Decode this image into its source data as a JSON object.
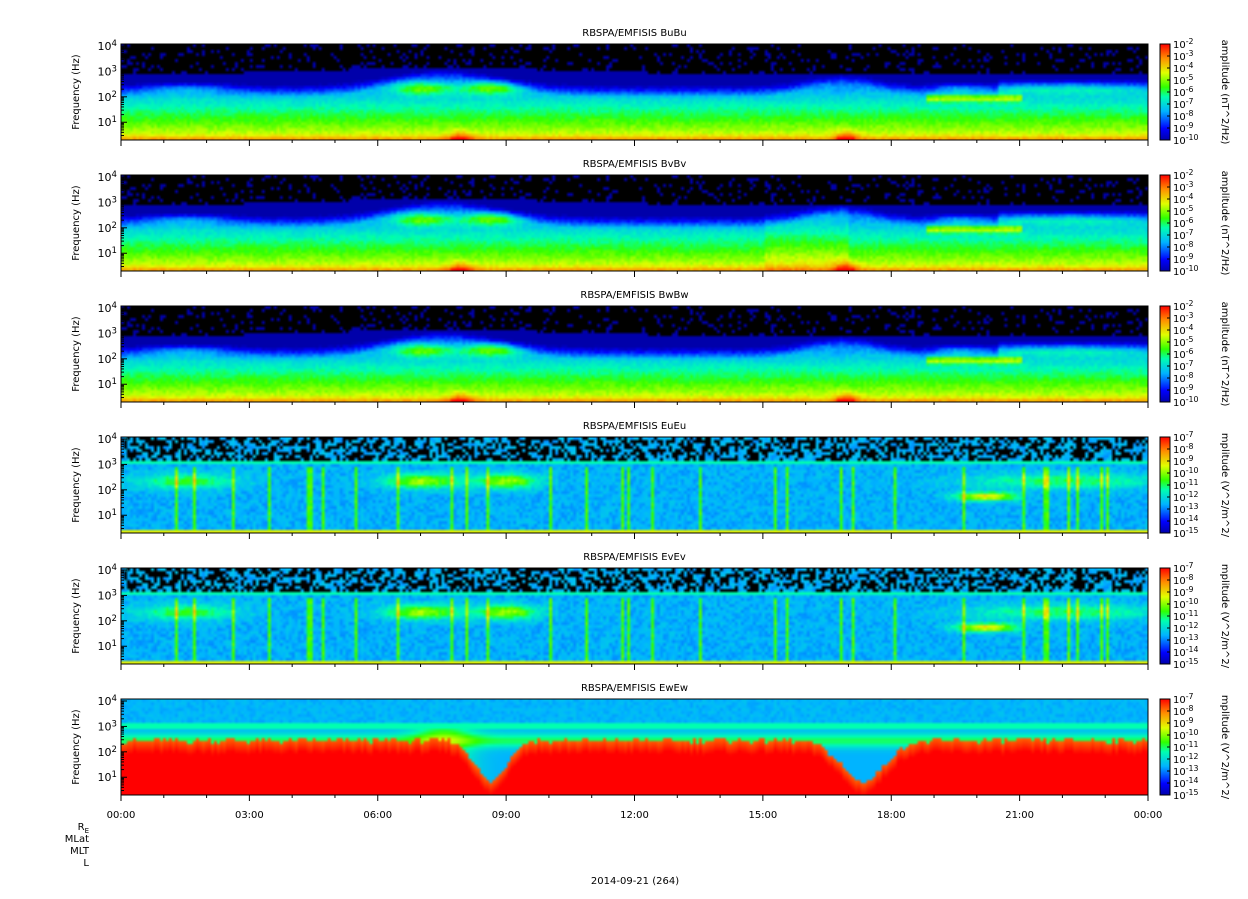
{
  "figure": {
    "x_axis_label": "2014-09-21 (264)",
    "x_tick_labels": [
      "00:00",
      "03:00",
      "06:00",
      "09:00",
      "12:00",
      "15:00",
      "18:00",
      "21:00",
      "00:00"
    ],
    "ephemeris_labels": [
      "R_E",
      "MLat",
      "MLT",
      "L"
    ],
    "colors": {
      "background": "#ffffff",
      "frame": "#000000",
      "fill_value": "#000000"
    }
  },
  "chart_data": [
    {
      "type": "heatmap",
      "title": "RBSPA/EMFISIS  BuBu",
      "ylabel": "Frequency (Hz)",
      "y_scale": "log",
      "y_tick_labels": [
        "10^4",
        "10^3",
        "10^2",
        "10^1"
      ],
      "ylim": [
        2,
        12000
      ],
      "x_range": [
        "00:00",
        "24:00"
      ],
      "colorbar": {
        "label": "amplitude (nT^2/Hz)",
        "scale": "log",
        "exp_min": -10,
        "exp_max": -2,
        "tick_labels": [
          "10^-2",
          "10^-3",
          "10^-4",
          "10^-5",
          "10^-6",
          "10^-7",
          "10^-8",
          "10^-9",
          "10^-10"
        ]
      }
    },
    {
      "type": "heatmap",
      "title": "RBSPA/EMFISIS  BvBv",
      "ylabel": "Frequency (Hz)",
      "y_scale": "log",
      "y_tick_labels": [
        "10^4",
        "10^3",
        "10^2",
        "10^1"
      ],
      "ylim": [
        2,
        12000
      ],
      "x_range": [
        "00:00",
        "24:00"
      ],
      "colorbar": {
        "label": "amplitude (nT^2/Hz)",
        "scale": "log",
        "exp_min": -10,
        "exp_max": -2,
        "tick_labels": [
          "10^-2",
          "10^-3",
          "10^-4",
          "10^-5",
          "10^-6",
          "10^-7",
          "10^-8",
          "10^-9",
          "10^-10"
        ]
      }
    },
    {
      "type": "heatmap",
      "title": "RBSPA/EMFISIS  BwBw",
      "ylabel": "Frequency (Hz)",
      "y_scale": "log",
      "y_tick_labels": [
        "10^4",
        "10^3",
        "10^2",
        "10^1"
      ],
      "ylim": [
        2,
        12000
      ],
      "x_range": [
        "00:00",
        "24:00"
      ],
      "colorbar": {
        "label": "amplitude (nT^2/Hz)",
        "scale": "log",
        "exp_min": -10,
        "exp_max": -2,
        "tick_labels": [
          "10^-2",
          "10^-3",
          "10^-4",
          "10^-5",
          "10^-6",
          "10^-7",
          "10^-8",
          "10^-9",
          "10^-10"
        ]
      }
    },
    {
      "type": "heatmap",
      "title": "RBSPA/EMFISIS  EuEu",
      "ylabel": "Frequency (Hz)",
      "y_scale": "log",
      "y_tick_labels": [
        "10^4",
        "10^3",
        "10^2",
        "10^1"
      ],
      "ylim": [
        2,
        12000
      ],
      "x_range": [
        "00:00",
        "24:00"
      ],
      "colorbar": {
        "label": "mplitude (V^2/m^2/",
        "scale": "log",
        "exp_min": -15,
        "exp_max": -7,
        "tick_labels": [
          "10^-7",
          "10^-8",
          "10^-9",
          "10^-10",
          "10^-11",
          "10^-12",
          "10^-13",
          "10^-14",
          "10^-15"
        ]
      }
    },
    {
      "type": "heatmap",
      "title": "RBSPA/EMFISIS  EvEv",
      "ylabel": "Frequency (Hz)",
      "y_scale": "log",
      "y_tick_labels": [
        "10^4",
        "10^3",
        "10^2",
        "10^1"
      ],
      "ylim": [
        2,
        12000
      ],
      "x_range": [
        "00:00",
        "24:00"
      ],
      "colorbar": {
        "label": "mplitude (V^2/m^2/",
        "scale": "log",
        "exp_min": -15,
        "exp_max": -7,
        "tick_labels": [
          "10^-7",
          "10^-8",
          "10^-9",
          "10^-10",
          "10^-11",
          "10^-12",
          "10^-13",
          "10^-14",
          "10^-15"
        ]
      }
    },
    {
      "type": "heatmap",
      "title": "RBSPA/EMFISIS  EwEw",
      "ylabel": "Frequency (Hz)",
      "y_scale": "log",
      "y_tick_labels": [
        "10^4",
        "10^3",
        "10^2",
        "10^1"
      ],
      "ylim": [
        2,
        12000
      ],
      "x_range": [
        "00:00",
        "24:00"
      ],
      "colorbar": {
        "label": "mplitude (V^2/m^2/",
        "scale": "log",
        "exp_min": -15,
        "exp_max": -7,
        "tick_labels": [
          "10^-7",
          "10^-8",
          "10^-9",
          "10^-10",
          "10^-11",
          "10^-12",
          "10^-13",
          "10^-14",
          "10^-15"
        ]
      }
    }
  ]
}
